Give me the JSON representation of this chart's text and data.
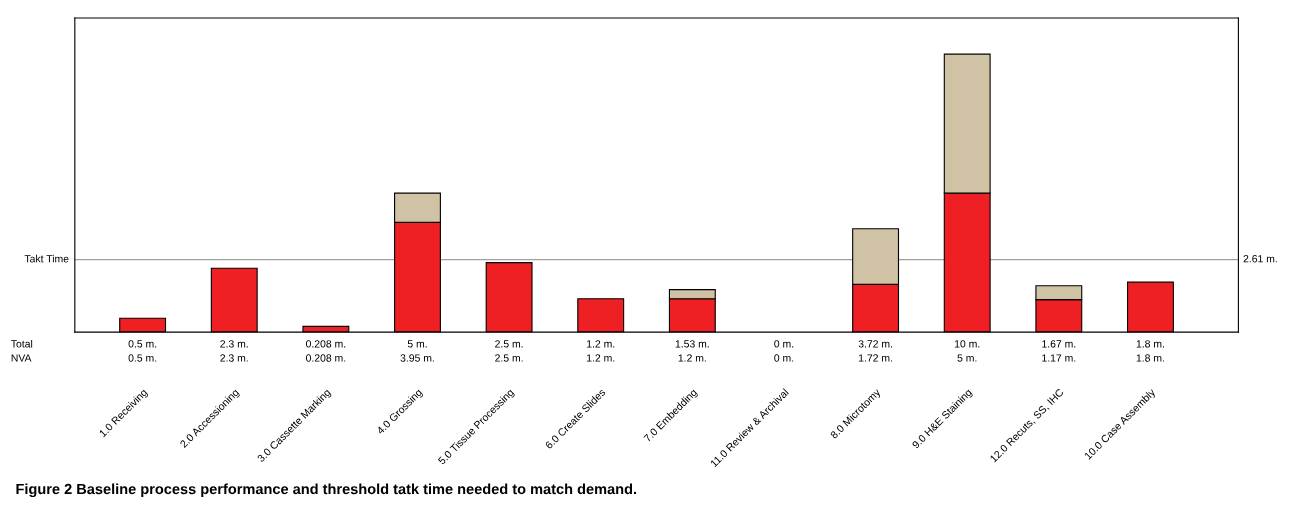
{
  "chart_data": {
    "type": "bar",
    "stacked": true,
    "categories": [
      "1.0 Receiving",
      "2.0 Accessioning",
      "3.0 Cassette Marking",
      "4.0 Grossing",
      "5.0 Tissue Processing",
      "6.0 Create Slides",
      "7.0 Embedding",
      "11.0 Review & Archival",
      "8.0 Microtomy",
      "9.0 H&E Staining",
      "12.0 Recuts, SS, IHC",
      "10.0 Case Assembly"
    ],
    "series": [
      {
        "color": "#ee2024",
        "values": [
          0.5,
          2.3,
          0.208,
          3.95,
          2.5,
          1.2,
          1.2,
          0,
          1.72,
          5,
          1.17,
          1.8
        ],
        "value_labels": [
          "0.5 m.",
          "2.3 m.",
          "0.208 m.",
          "3.95 m.",
          "2.5 m.",
          "1.2 m.",
          "1.2 m.",
          "0 m.",
          "1.72 m.",
          "5 m.",
          "1.17 m.",
          "1.8 m."
        ]
      },
      {
        "color": "#d0c2a4",
        "values": [
          0,
          0,
          0,
          1.05,
          0,
          0,
          0.33,
          0,
          2,
          5,
          0.5,
          0
        ]
      }
    ],
    "totals": [
      "0.5 m.",
      "2.3 m.",
      "0.208 m.",
      "5 m.",
      "2.5 m.",
      "1.2 m.",
      "1.53 m.",
      "0 m.",
      "3.72 m.",
      "10 m.",
      "1.67 m.",
      "1.8 m."
    ],
    "ylim": [
      0,
      11.3
    ],
    "tick_labels": "x",
    "ref_lines": [
      {
        "axis": "y",
        "value": 2.61,
        "label": "2.61 m.",
        "color": "#a0a0a0"
      }
    ],
    "annotations": [
      "Total",
      "NVA",
      "Takt Time",
      "Figure 2 Baseline process performance and threshold tatk time needed to match demand."
    ],
    "grid": false,
    "legend": false
  }
}
